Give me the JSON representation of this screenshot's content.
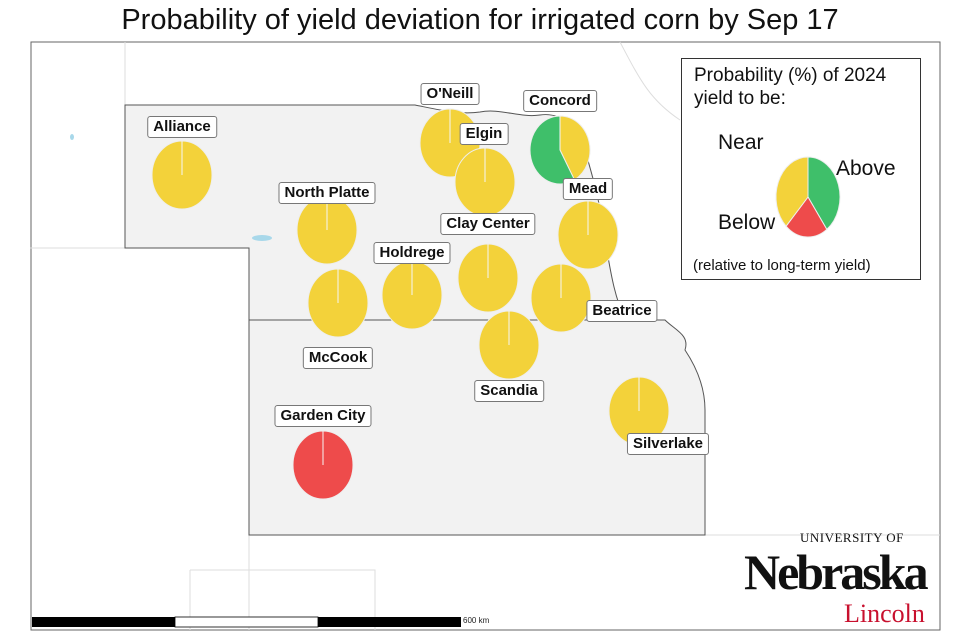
{
  "title": "Probability of yield deviation for irrigated corn by Sep 17",
  "colors": {
    "near": "#f3d23a",
    "above": "#3fbf6a",
    "below": "#ee4b4b"
  },
  "sites": [
    {
      "name": "Alliance",
      "slices": [
        {
          "cat": "near",
          "pct": 100
        }
      ]
    },
    {
      "name": "O'Neill",
      "slices": [
        {
          "cat": "near",
          "pct": 100
        }
      ]
    },
    {
      "name": "Elgin",
      "slices": [
        {
          "cat": "near",
          "pct": 100
        }
      ]
    },
    {
      "name": "Concord",
      "slices": [
        {
          "cat": "near",
          "pct": 42
        },
        {
          "cat": "above",
          "pct": 58
        }
      ]
    },
    {
      "name": "North Platte",
      "slices": [
        {
          "cat": "near",
          "pct": 100
        }
      ]
    },
    {
      "name": "Mead",
      "slices": [
        {
          "cat": "near",
          "pct": 100
        }
      ]
    },
    {
      "name": "Clay Center",
      "slices": [
        {
          "cat": "near",
          "pct": 100
        }
      ]
    },
    {
      "name": "Holdrege",
      "slices": [
        {
          "cat": "near",
          "pct": 100
        }
      ]
    },
    {
      "name": "McCook",
      "slices": [
        {
          "cat": "near",
          "pct": 100
        }
      ]
    },
    {
      "name": "Beatrice",
      "slices": [
        {
          "cat": "near",
          "pct": 100
        }
      ]
    },
    {
      "name": "Scandia",
      "slices": [
        {
          "cat": "near",
          "pct": 100
        }
      ]
    },
    {
      "name": "Silverlake",
      "slices": [
        {
          "cat": "near",
          "pct": 100
        }
      ]
    },
    {
      "name": "Garden City",
      "slices": [
        {
          "cat": "below",
          "pct": 100
        }
      ]
    }
  ],
  "legend": {
    "title_line1": "Probability (%) of 2024",
    "title_line2": "yield to be:",
    "near": "Near",
    "above": "Above",
    "below": "Below",
    "footnote": "(relative to long-term yield)",
    "example_slices": [
      {
        "cat": "above",
        "pct": 40
      },
      {
        "cat": "below",
        "pct": 22
      },
      {
        "cat": "near",
        "pct": 38
      }
    ]
  },
  "scale_bar": {
    "label": "600 km"
  },
  "logo": {
    "line1": "UNIVERSITY OF",
    "line2": "Nebraska",
    "line3": "Lincoln"
  }
}
